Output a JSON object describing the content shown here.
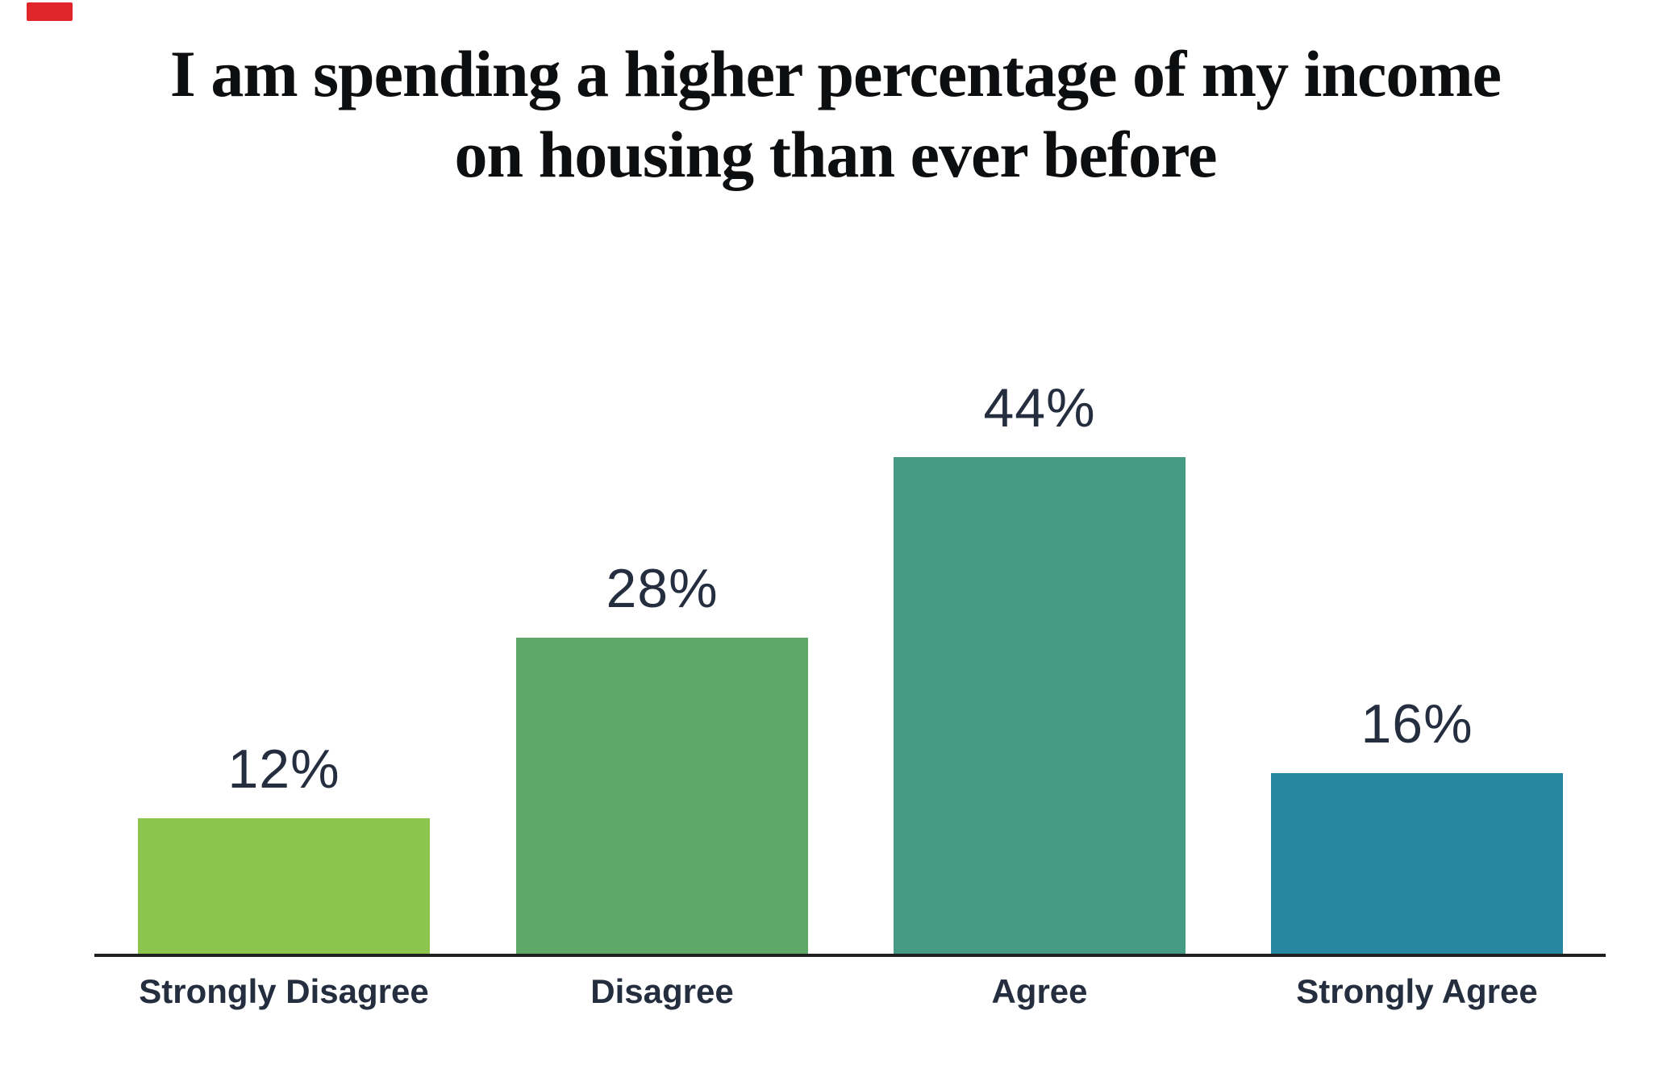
{
  "page": {
    "background": "#ffffff"
  },
  "brand": {
    "mark_color": "#e0252b"
  },
  "title": {
    "text": "I am spending a higher percentage of my income on housing than ever before",
    "lines": [
      "I am spending a higher percentage of my income",
      "on housing than ever before"
    ],
    "color": "#0d0e10"
  },
  "chart_data": {
    "type": "bar",
    "title": "I am spending a higher percentage of my income on housing than ever before",
    "categories": [
      "Strongly Disagree",
      "Disagree",
      "Agree",
      "Strongly Agree"
    ],
    "values": [
      12,
      28,
      44,
      16
    ],
    "value_labels": [
      "12%",
      "28%",
      "44%",
      "16%"
    ],
    "unit": "%",
    "bar_colors": [
      "#8cc54d",
      "#5fa968",
      "#459a84",
      "#2787a3"
    ],
    "label_color": "#242e3f",
    "axis_line_color": "#1f1f1f",
    "xlabel": "",
    "ylabel": "",
    "ylim": [
      0,
      50
    ],
    "grid": false,
    "legend": "none"
  }
}
